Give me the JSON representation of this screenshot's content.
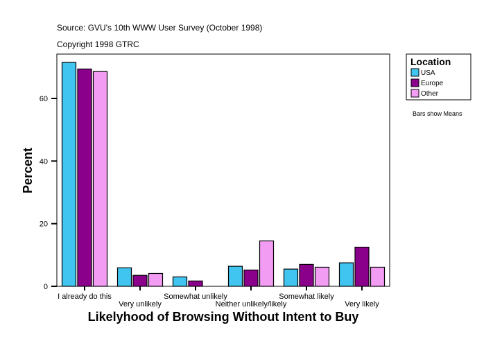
{
  "chart_data": {
    "type": "bar",
    "title": "Source: GVU's 10th WWW User Survey (October 1998)",
    "subtitle": "Copyright 1998 GTRC",
    "xlabel": "Likelyhood of Browsing Without Intent to Buy",
    "ylabel": "Percent",
    "ylim": [
      0,
      74
    ],
    "yticks": [
      0,
      20,
      40,
      60
    ],
    "categories": [
      "I already do this",
      "Very unlikely",
      "Somewhat unlikely",
      "Neither unlikely/likely",
      "Somewhat likely",
      "Very likely"
    ],
    "series": [
      {
        "name": "USA",
        "color": "#40c4f0",
        "values": [
          71.5,
          5.9,
          3.0,
          6.4,
          5.5,
          7.5
        ]
      },
      {
        "name": "Europe",
        "color": "#8b008b",
        "values": [
          69.4,
          3.5,
          1.7,
          5.2,
          7.0,
          12.5
        ]
      },
      {
        "name": "Other",
        "color": "#f39cf3",
        "values": [
          68.6,
          4.1,
          null,
          14.5,
          6.1,
          6.1
        ]
      }
    ],
    "legend": {
      "title": "Location",
      "placement": "right"
    },
    "note": "Bars show Means",
    "grid": false
  }
}
